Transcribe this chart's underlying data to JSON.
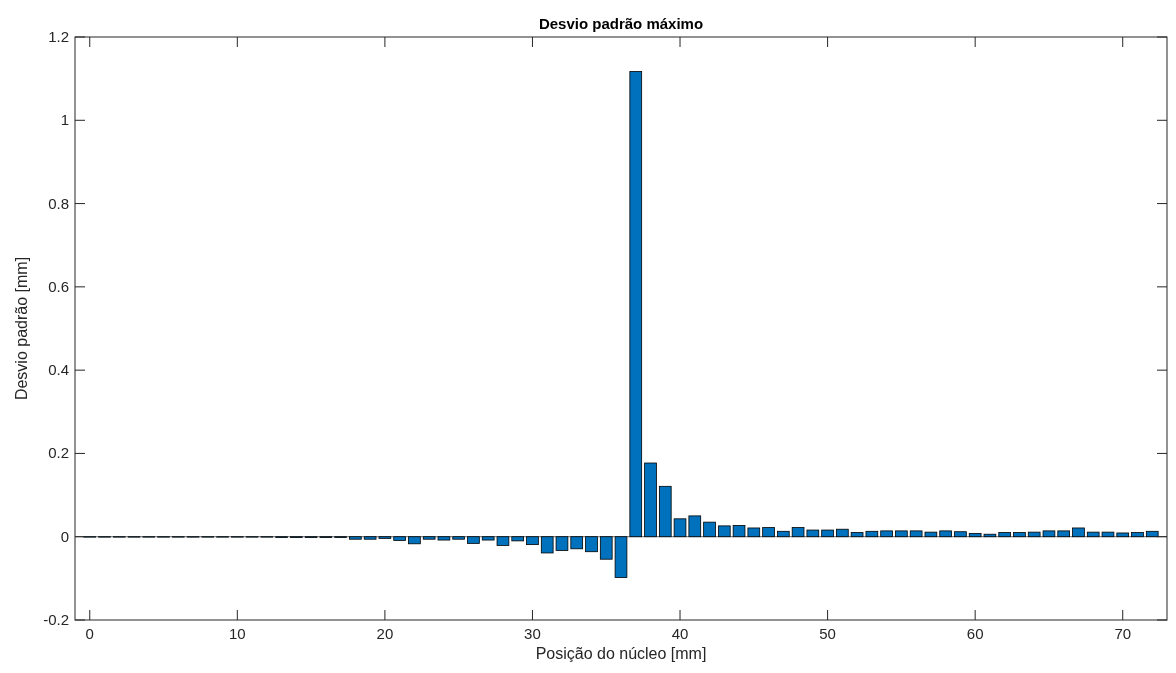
{
  "chart_data": {
    "type": "bar",
    "title": "Desvio padrão máximo",
    "xlabel": "Posição do núcleo [mm]",
    "ylabel": "Desvio padrão [mm]",
    "x": [
      0,
      1,
      2,
      3,
      4,
      5,
      6,
      7,
      8,
      9,
      10,
      11,
      12,
      13,
      14,
      15,
      16,
      17,
      18,
      19,
      20,
      21,
      22,
      23,
      24,
      25,
      26,
      27,
      28,
      29,
      30,
      31,
      32,
      33,
      34,
      35,
      36,
      37,
      38,
      39,
      40,
      41,
      42,
      43,
      44,
      45,
      46,
      47,
      48,
      49,
      50,
      51,
      52,
      53,
      54,
      55,
      56,
      57,
      58,
      59,
      60,
      61,
      62,
      63,
      64,
      65,
      66,
      67,
      68,
      69,
      70,
      71,
      72
    ],
    "values": [
      -0.001,
      -0.001,
      -0.001,
      -0.001,
      -0.001,
      -0.001,
      -0.001,
      -0.001,
      -0.001,
      -0.001,
      -0.001,
      -0.001,
      -0.001,
      -0.002,
      -0.002,
      -0.002,
      -0.002,
      -0.002,
      -0.006,
      -0.006,
      -0.004,
      -0.009,
      -0.017,
      -0.006,
      -0.008,
      -0.006,
      -0.016,
      -0.008,
      -0.021,
      -0.01,
      -0.019,
      -0.039,
      -0.033,
      -0.029,
      -0.036,
      -0.054,
      -0.098,
      1.117,
      0.177,
      0.121,
      0.043,
      0.05,
      0.035,
      0.026,
      0.027,
      0.021,
      0.022,
      0.013,
      0.022,
      0.016,
      0.016,
      0.018,
      0.01,
      0.013,
      0.014,
      0.014,
      0.014,
      0.011,
      0.014,
      0.012,
      0.008,
      0.006,
      0.01,
      0.01,
      0.011,
      0.014,
      0.014,
      0.021,
      0.011,
      0.011,
      0.009,
      0.01,
      0.013
    ],
    "color": "#0072bd",
    "xlim": [
      -1,
      73
    ],
    "xticks": [
      0,
      10,
      20,
      30,
      40,
      50,
      60,
      70
    ],
    "ylim": [
      -0.2,
      1.2
    ],
    "yticks": [
      -0.2,
      0,
      0.2,
      0.4,
      0.6,
      0.8,
      1,
      1.2
    ]
  }
}
